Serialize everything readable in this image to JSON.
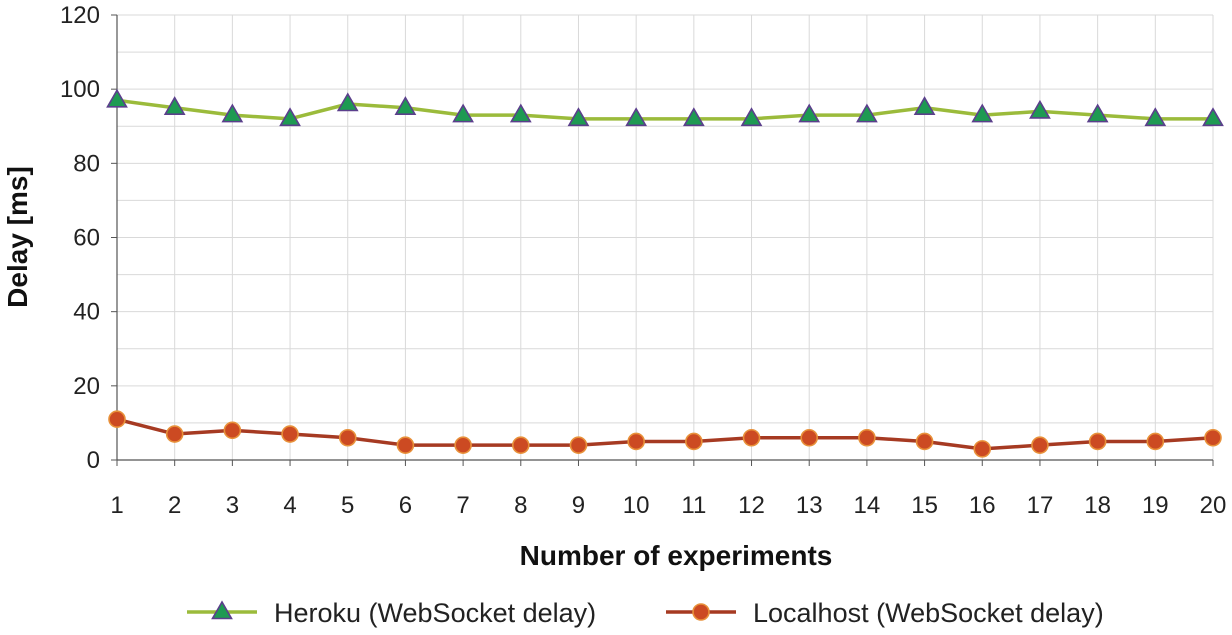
{
  "chart_data": {
    "type": "line",
    "title": "",
    "xlabel": "Number of experiments",
    "ylabel": "Delay [ms]",
    "x": [
      1,
      2,
      3,
      4,
      5,
      6,
      7,
      8,
      9,
      10,
      11,
      12,
      13,
      14,
      15,
      16,
      17,
      18,
      19,
      20
    ],
    "xlim": [
      1,
      20
    ],
    "ylim": [
      0,
      120
    ],
    "yticks": [
      0,
      20,
      40,
      60,
      80,
      100,
      120
    ],
    "grid": true,
    "legend_position": "bottom",
    "series": [
      {
        "name": "Heroku (WebSocket delay)",
        "marker": "triangle",
        "line_color": "#9bbb3b",
        "marker_fill": "#1e9a52",
        "marker_edge": "#5b3f8c",
        "values": [
          97,
          95,
          93,
          92,
          96,
          95,
          93,
          93,
          92,
          92,
          92,
          92,
          93,
          93,
          95,
          93,
          94,
          93,
          92,
          92
        ]
      },
      {
        "name": "Localhost (WebSocket delay)",
        "marker": "circle",
        "line_color": "#a63a22",
        "marker_fill": "#cc4a22",
        "marker_edge": "#e8913a",
        "values": [
          11,
          7,
          8,
          7,
          6,
          4,
          4,
          4,
          4,
          5,
          5,
          6,
          6,
          6,
          5,
          3,
          4,
          5,
          5,
          6
        ]
      }
    ]
  }
}
